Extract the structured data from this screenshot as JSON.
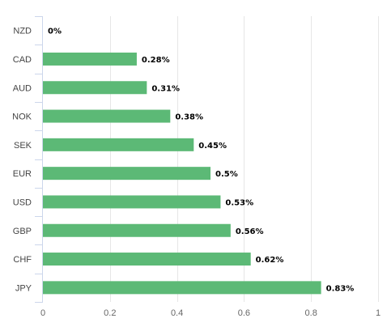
{
  "chart_data": {
    "type": "bar",
    "orientation": "horizontal",
    "categories": [
      "NZD",
      "CAD",
      "AUD",
      "NOK",
      "SEK",
      "EUR",
      "USD",
      "GBP",
      "CHF",
      "JPY"
    ],
    "values": [
      0,
      0.28,
      0.31,
      0.38,
      0.45,
      0.5,
      0.53,
      0.56,
      0.62,
      0.83
    ],
    "data_labels": [
      "0%",
      "0.28%",
      "0.31%",
      "0.38%",
      "0.45%",
      "0.5%",
      "0.53%",
      "0.56%",
      "0.62%",
      "0.83%"
    ],
    "x_ticks": [
      0,
      0.2,
      0.4,
      0.6,
      0.8,
      1
    ],
    "xlim": [
      0,
      1
    ],
    "title": "",
    "xlabel": "",
    "ylabel": "",
    "grid": true,
    "legend": false,
    "bar_color": "#5cb976"
  }
}
